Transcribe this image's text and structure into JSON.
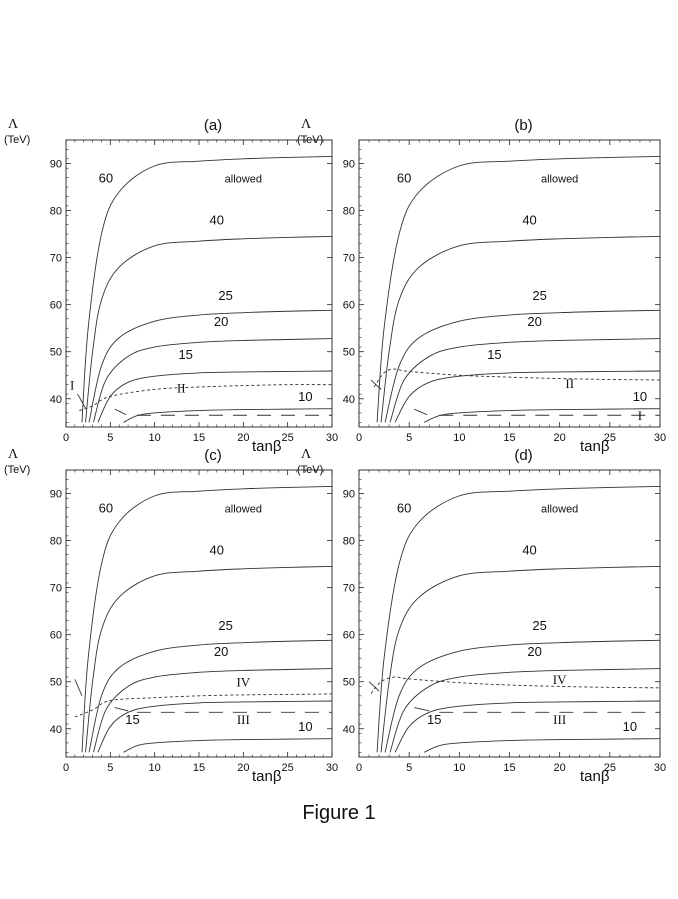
{
  "caption": "Figure 1",
  "chart_data": [
    {
      "type": "line",
      "title": "(a)",
      "ylabel": "Λ",
      "yunit": "(TeV)",
      "xlabel": "tanβ",
      "xlim": [
        0,
        30
      ],
      "ylim": [
        34,
        95
      ],
      "xticks": [
        0,
        5,
        10,
        15,
        20,
        25,
        30
      ],
      "yticks": [
        40,
        50,
        60,
        70,
        80,
        90
      ],
      "series": [
        {
          "name": "60",
          "x": [
            1.8,
            2.5,
            4,
            6,
            10,
            15,
            20,
            25,
            30
          ],
          "y": [
            35,
            55,
            75,
            84,
            89.5,
            90.5,
            91,
            91.3,
            91.5
          ]
        },
        {
          "name": "40",
          "x": [
            2.2,
            3,
            4,
            6,
            10,
            15,
            20,
            25,
            30
          ],
          "y": [
            35,
            50,
            61,
            68,
            72.5,
            73.5,
            74,
            74.3,
            74.5
          ]
        },
        {
          "name": "25",
          "x": [
            2.6,
            4,
            6,
            10,
            15,
            20,
            25,
            30
          ],
          "y": [
            35,
            47,
            53,
            56.5,
            57.8,
            58.3,
            58.6,
            58.8
          ]
        },
        {
          "name": "20",
          "x": [
            3.1,
            4.5,
            7,
            10,
            15,
            20,
            25,
            30
          ],
          "y": [
            35,
            44,
            49,
            51,
            52,
            52.4,
            52.6,
            52.8
          ]
        },
        {
          "name": "15",
          "x": [
            3.6,
            5,
            7,
            10,
            15,
            20,
            25,
            30
          ],
          "y": [
            35,
            40.5,
            43.5,
            44.8,
            45.5,
            45.7,
            45.8,
            45.9
          ]
        },
        {
          "name": "10",
          "x": [
            6.5,
            8,
            10,
            15,
            20,
            25,
            30
          ],
          "y": [
            35,
            36.4,
            37,
            37.5,
            37.7,
            37.8,
            37.9
          ]
        },
        {
          "name": "II",
          "dash": "short",
          "x": [
            1.5,
            3,
            5,
            10,
            15,
            20,
            25,
            30
          ],
          "y": [
            37.5,
            38.5,
            40.5,
            42,
            42.5,
            42.8,
            43,
            43
          ]
        },
        {
          "name": "",
          "dash": "long",
          "x": [
            8,
            30
          ],
          "y": [
            36.5,
            36.5
          ]
        },
        {
          "name": "I",
          "x": [
            1.3,
            2.2
          ],
          "y": [
            41,
            38
          ]
        },
        {
          "name": "",
          "x": [
            5.5,
            6.8
          ],
          "y": [
            37.8,
            36.6
          ]
        }
      ],
      "annotations": [
        "allowed",
        "60",
        "40",
        "25",
        "20",
        "15",
        "10",
        "I",
        "II"
      ]
    },
    {
      "type": "line",
      "title": "(b)",
      "ylabel": "Λ",
      "yunit": "(TeV)",
      "xlabel": "tanβ",
      "xlim": [
        0,
        30
      ],
      "ylim": [
        34,
        95
      ],
      "xticks": [
        0,
        5,
        10,
        15,
        20,
        25,
        30
      ],
      "yticks": [
        40,
        50,
        60,
        70,
        80,
        90
      ],
      "series": [
        {
          "name": "60",
          "x": [
            1.8,
            2.5,
            4,
            6,
            10,
            15,
            20,
            25,
            30
          ],
          "y": [
            35,
            55,
            75,
            84,
            89.5,
            90.5,
            91,
            91.3,
            91.5
          ]
        },
        {
          "name": "40",
          "x": [
            2.2,
            3,
            4,
            6,
            10,
            15,
            20,
            25,
            30
          ],
          "y": [
            35,
            50,
            61,
            68,
            72.5,
            73.5,
            74,
            74.3,
            74.5
          ]
        },
        {
          "name": "25",
          "x": [
            2.6,
            4,
            6,
            10,
            15,
            20,
            25,
            30
          ],
          "y": [
            35,
            47,
            53,
            56.5,
            57.8,
            58.3,
            58.6,
            58.8
          ]
        },
        {
          "name": "20",
          "x": [
            3.1,
            4.5,
            7,
            10,
            15,
            20,
            25,
            30
          ],
          "y": [
            35,
            44,
            49,
            51,
            52,
            52.4,
            52.6,
            52.8
          ]
        },
        {
          "name": "15",
          "x": [
            3.6,
            5,
            7,
            10,
            15,
            20,
            25,
            30
          ],
          "y": [
            35,
            40.5,
            43.5,
            44.8,
            45.5,
            45.7,
            45.8,
            45.9
          ]
        },
        {
          "name": "10",
          "x": [
            6.5,
            8,
            10,
            15,
            20,
            25,
            30
          ],
          "y": [
            35,
            36.4,
            37,
            37.5,
            37.7,
            37.8,
            37.9
          ]
        },
        {
          "name": "II",
          "dash": "short",
          "x": [
            1.5,
            2.5,
            3.5,
            5,
            10,
            15,
            20,
            25,
            30
          ],
          "y": [
            42.5,
            45.5,
            46.3,
            45.8,
            45,
            44.6,
            44.3,
            44.1,
            44
          ]
        },
        {
          "name": "I",
          "dash": "long",
          "x": [
            8,
            30
          ],
          "y": [
            36.5,
            36.5
          ]
        },
        {
          "name": "",
          "x": [
            1.2,
            2.2
          ],
          "y": [
            44,
            42
          ]
        },
        {
          "name": "",
          "x": [
            5.5,
            6.8
          ],
          "y": [
            37.8,
            36.6
          ]
        }
      ],
      "annotations": [
        "allowed",
        "60",
        "40",
        "25",
        "20",
        "15",
        "10",
        "I",
        "II"
      ]
    },
    {
      "type": "line",
      "title": "(c)",
      "ylabel": "Λ",
      "yunit": "(TeV)",
      "xlabel": "tanβ",
      "xlim": [
        0,
        30
      ],
      "ylim": [
        34,
        95
      ],
      "xticks": [
        0,
        5,
        10,
        15,
        20,
        25,
        30
      ],
      "yticks": [
        40,
        50,
        60,
        70,
        80,
        90
      ],
      "series": [
        {
          "name": "60",
          "x": [
            1.8,
            2.5,
            4,
            6,
            10,
            15,
            20,
            25,
            30
          ],
          "y": [
            35,
            55,
            75,
            84,
            89.5,
            90.5,
            91,
            91.3,
            91.5
          ]
        },
        {
          "name": "40",
          "x": [
            2.2,
            3,
            4,
            6,
            10,
            15,
            20,
            25,
            30
          ],
          "y": [
            35,
            50,
            61,
            68,
            72.5,
            73.5,
            74,
            74.3,
            74.5
          ]
        },
        {
          "name": "25",
          "x": [
            2.6,
            4,
            6,
            10,
            15,
            20,
            25,
            30
          ],
          "y": [
            35,
            47,
            53,
            56.5,
            57.8,
            58.3,
            58.6,
            58.8
          ]
        },
        {
          "name": "20",
          "x": [
            3.1,
            4.5,
            7,
            10,
            15,
            20,
            25,
            30
          ],
          "y": [
            35,
            44,
            49,
            51,
            52,
            52.4,
            52.6,
            52.8
          ]
        },
        {
          "name": "15",
          "x": [
            3.6,
            5,
            7,
            10,
            15,
            20,
            25,
            30
          ],
          "y": [
            35,
            40.5,
            43.5,
            44.8,
            45.5,
            45.7,
            45.8,
            45.9
          ]
        },
        {
          "name": "10",
          "x": [
            6.5,
            8,
            10,
            15,
            20,
            25,
            30
          ],
          "y": [
            35,
            36.4,
            37,
            37.5,
            37.7,
            37.8,
            37.9
          ]
        },
        {
          "name": "IV",
          "dash": "short",
          "x": [
            1,
            3,
            5,
            10,
            15,
            20,
            25,
            30
          ],
          "y": [
            42.5,
            44,
            46,
            46.6,
            47,
            47.2,
            47.3,
            47.4
          ]
        },
        {
          "name": "III",
          "dash": "long",
          "x": [
            8,
            30
          ],
          "y": [
            43.5,
            43.5
          ]
        },
        {
          "name": "",
          "x": [
            1,
            1.8
          ],
          "y": [
            50.5,
            47
          ]
        },
        {
          "name": "",
          "x": [
            5.5,
            7
          ],
          "y": [
            44.5,
            43.8
          ]
        }
      ],
      "annotations": [
        "allowed",
        "60",
        "40",
        "25",
        "20",
        "15",
        "10",
        "III",
        "IV"
      ]
    },
    {
      "type": "line",
      "title": "(d)",
      "ylabel": "Λ",
      "yunit": "(TeV)",
      "xlabel": "tanβ",
      "xlim": [
        0,
        30
      ],
      "ylim": [
        34,
        95
      ],
      "xticks": [
        0,
        5,
        10,
        15,
        20,
        25,
        30
      ],
      "yticks": [
        40,
        50,
        60,
        70,
        80,
        90
      ],
      "series": [
        {
          "name": "60",
          "x": [
            1.8,
            2.5,
            4,
            6,
            10,
            15,
            20,
            25,
            30
          ],
          "y": [
            35,
            55,
            75,
            84,
            89.5,
            90.5,
            91,
            91.3,
            91.5
          ]
        },
        {
          "name": "40",
          "x": [
            2.2,
            3,
            4,
            6,
            10,
            15,
            20,
            25,
            30
          ],
          "y": [
            35,
            50,
            61,
            68,
            72.5,
            73.5,
            74,
            74.3,
            74.5
          ]
        },
        {
          "name": "25",
          "x": [
            2.6,
            4,
            6,
            10,
            15,
            20,
            25,
            30
          ],
          "y": [
            35,
            47,
            53,
            56.5,
            57.8,
            58.3,
            58.6,
            58.8
          ]
        },
        {
          "name": "20",
          "x": [
            3.1,
            4.5,
            7,
            10,
            15,
            20,
            25,
            30
          ],
          "y": [
            35,
            44,
            49,
            51,
            52,
            52.4,
            52.6,
            52.8
          ]
        },
        {
          "name": "15",
          "x": [
            3.6,
            5,
            7,
            10,
            15,
            20,
            25,
            30
          ],
          "y": [
            35,
            40.5,
            43.5,
            44.8,
            45.5,
            45.7,
            45.8,
            45.9
          ]
        },
        {
          "name": "10",
          "x": [
            6.5,
            8,
            10,
            15,
            20,
            25,
            30
          ],
          "y": [
            35,
            36.4,
            37,
            37.5,
            37.7,
            37.8,
            37.9
          ]
        },
        {
          "name": "IV",
          "dash": "short",
          "x": [
            1.2,
            2.2,
            3.5,
            5,
            10,
            15,
            20,
            25,
            30
          ],
          "y": [
            47.5,
            50,
            51,
            50.6,
            49.8,
            49.3,
            49,
            48.8,
            48.7
          ]
        },
        {
          "name": "III",
          "dash": "long",
          "x": [
            8,
            30
          ],
          "y": [
            43.5,
            43.5
          ]
        },
        {
          "name": "",
          "x": [
            1,
            2
          ],
          "y": [
            50,
            48
          ]
        },
        {
          "name": "",
          "x": [
            5.5,
            7
          ],
          "y": [
            44.5,
            43.8
          ]
        }
      ],
      "annotations": [
        "allowed",
        "60",
        "40",
        "25",
        "20",
        "15",
        "10",
        "III",
        "IV"
      ]
    }
  ]
}
